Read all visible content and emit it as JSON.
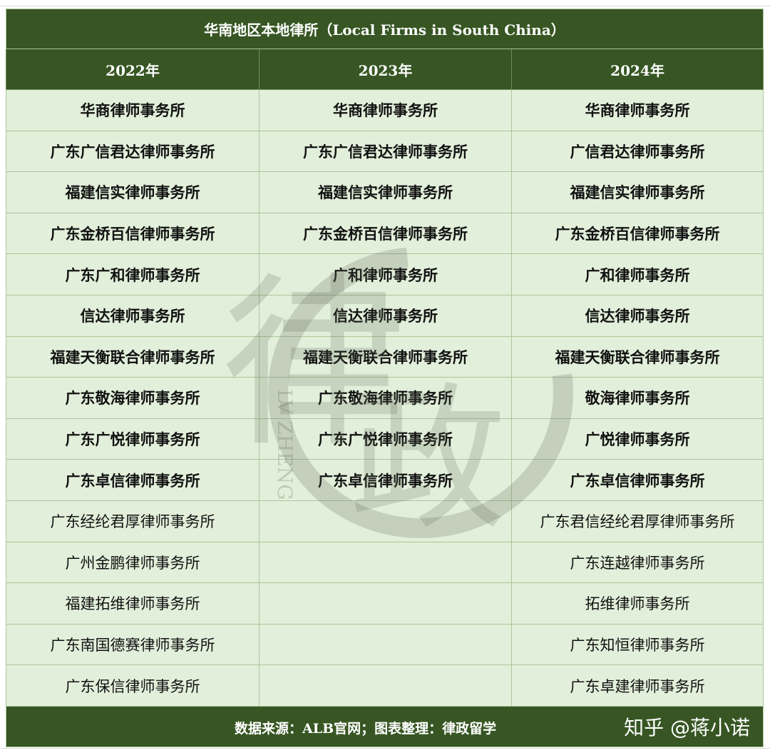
{
  "title": "华南地区本地律所（Local Firms in South China）",
  "columns": [
    "2022年",
    "2023年",
    "2024年"
  ],
  "rows": [
    {
      "bold": true,
      "cells": [
        "华商律师事务所",
        "华商律师事务所",
        "华商律师事务所"
      ]
    },
    {
      "bold": true,
      "cells": [
        "广东广信君达律师事务所",
        "广东广信君达律师事务所",
        "广信君达律师事务所"
      ]
    },
    {
      "bold": true,
      "cells": [
        "福建信实律师事务所",
        "福建信实律师事务所",
        "福建信实律师事务所"
      ]
    },
    {
      "bold": true,
      "cells": [
        "广东金桥百信律师事务所",
        "广东金桥百信律师事务所",
        "广东金桥百信律师事务所"
      ]
    },
    {
      "bold": true,
      "cells": [
        "广东广和律师事务所",
        "广和律师事务所",
        "广和律师事务所"
      ]
    },
    {
      "bold": true,
      "cells": [
        "信达律师事务所",
        "信达律师事务所",
        "信达律师事务所"
      ]
    },
    {
      "bold": true,
      "cells": [
        "福建天衡联合律师事务所",
        "福建天衡联合律师事务所",
        "福建天衡联合律师事务所"
      ]
    },
    {
      "bold": true,
      "cells": [
        "广东敬海律师事务所",
        "广东敬海律师事务所",
        "敬海律师事务所"
      ]
    },
    {
      "bold": true,
      "cells": [
        "广东广悦律师事务所",
        "广东广悦律师事务所",
        "广悦律师事务所"
      ]
    },
    {
      "bold": true,
      "cells": [
        "广东卓信律师事务所",
        "广东卓信律师事务所",
        "广东卓信律师事务所"
      ]
    },
    {
      "bold": false,
      "cells": [
        "广东经纶君厚律师事务所",
        "",
        "广东君信经纶君厚律师事务所"
      ]
    },
    {
      "bold": false,
      "cells": [
        "广州金鹏律师事务所",
        "",
        "广东连越律师事务所"
      ]
    },
    {
      "bold": false,
      "cells": [
        "福建拓维律师事务所",
        "",
        "拓维律师事务所"
      ]
    },
    {
      "bold": false,
      "cells": [
        "广东南国德赛律师事务所",
        "",
        "广东知恒律师事务所"
      ]
    },
    {
      "bold": false,
      "cells": [
        "广东保信律师事务所",
        "",
        "广东卓建律师事务所"
      ]
    }
  ],
  "footer": {
    "source": "数据来源：ALB官网；图表整理：律政留学",
    "watermark_user": "知乎 @蒋小诺"
  },
  "watermark": {
    "text": "律政",
    "latin": "LV ZHENG"
  },
  "colors": {
    "header_bg": "#375623",
    "cell_bg": "#e2efda",
    "border": "#a9c79a"
  }
}
